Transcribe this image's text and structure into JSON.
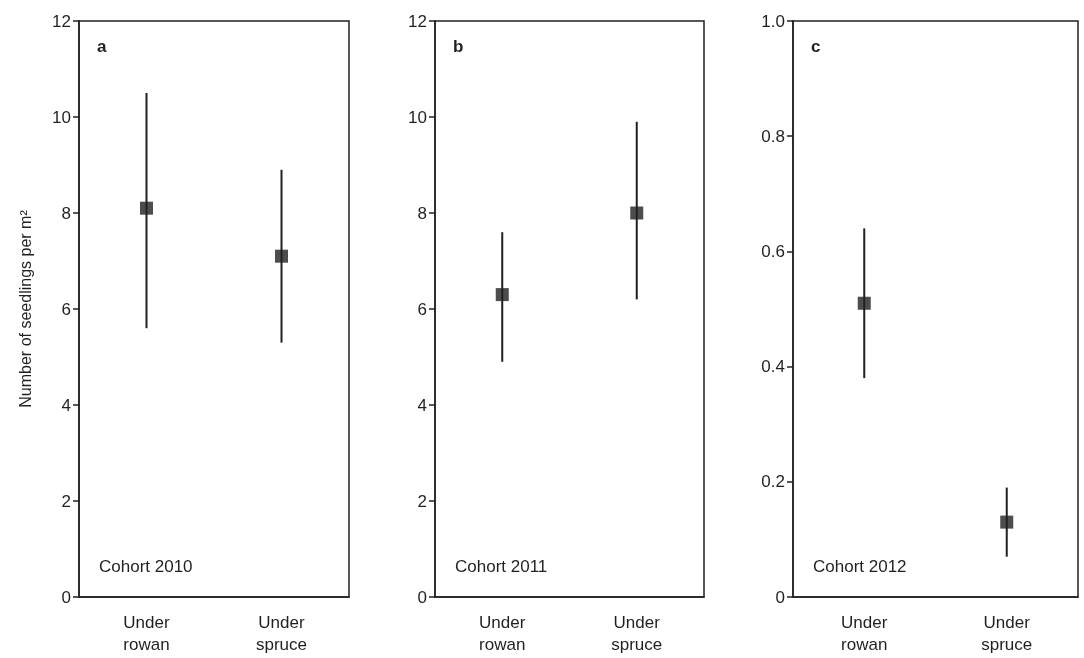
{
  "chart_data": [
    {
      "type": "scatter",
      "title": "a",
      "ylabel": "Number of seedlings per m²",
      "annotations": [
        "Cohort 2010"
      ],
      "categories": [
        "Under\nrowan",
        "Under\nspruce"
      ],
      "marker": "square",
      "grid": false,
      "series": [
        {
          "color": "#231f20",
          "values": [
            8.1,
            7.1
          ],
          "errors": [
            [
              5.6,
              10.5
            ],
            [
              5.3,
              8.9
            ]
          ]
        }
      ],
      "ylim": [
        0,
        12
      ],
      "yticks": [
        0,
        2,
        4,
        6,
        8,
        10,
        12
      ]
    },
    {
      "type": "scatter",
      "title": "b",
      "annotations": [
        "Cohort 2011"
      ],
      "categories": [
        "Under\nrowan",
        "Under\nspruce"
      ],
      "marker": "square",
      "grid": false,
      "series": [
        {
          "color": "#231f20",
          "values": [
            6.3,
            8.0
          ],
          "errors": [
            [
              4.9,
              7.6
            ],
            [
              6.2,
              9.9
            ]
          ]
        }
      ],
      "ylim": [
        0,
        12
      ],
      "yticks": [
        0,
        2,
        4,
        6,
        8,
        10,
        12
      ]
    },
    {
      "type": "scatter",
      "title": "c",
      "annotations": [
        "Cohort 2012"
      ],
      "categories": [
        "Under\nrowan",
        "Under\nspruce"
      ],
      "marker": "square",
      "grid": false,
      "series": [
        {
          "color": "#231f20",
          "values": [
            0.51,
            0.13
          ],
          "errors": [
            [
              0.38,
              0.64
            ],
            [
              0.07,
              0.19
            ]
          ]
        }
      ],
      "ylim": [
        0,
        1
      ],
      "yticks": [
        0,
        {
          "value": 0.2,
          "label": "0.2"
        },
        {
          "value": 0.4,
          "label": "0.4"
        },
        {
          "value": 0.6,
          "label": "0.6"
        },
        {
          "value": 0.8,
          "label": "0.8"
        },
        {
          "value": 1,
          "label": "1.0"
        }
      ]
    }
  ]
}
